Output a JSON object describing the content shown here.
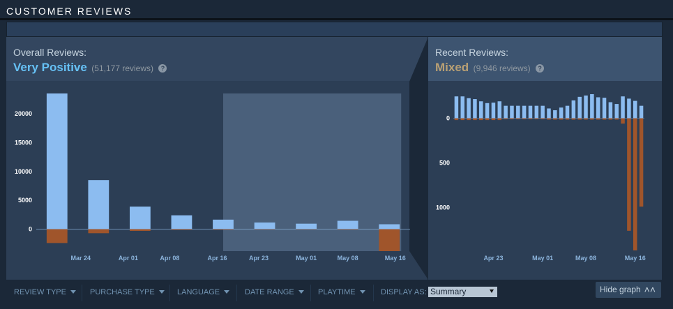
{
  "section_title": "CUSTOMER REVIEWS",
  "overall": {
    "label": "Overall Reviews:",
    "summary": "Very Positive",
    "count": "(51,177 reviews)",
    "help_icon": "?"
  },
  "recent": {
    "label": "Recent Reviews:",
    "summary": "Mixed",
    "count": "(9,946 reviews)",
    "help_icon": "?"
  },
  "colors": {
    "positive": "#8cbcf0",
    "negative": "#a0552b",
    "very_positive": "#66c0f4",
    "mixed": "#b9a074",
    "highlight_range": "#4e6480"
  },
  "filters": [
    {
      "label": "REVIEW TYPE",
      "icon": "caret-down-icon"
    },
    {
      "label": "PURCHASE TYPE",
      "icon": "caret-down-icon"
    },
    {
      "label": "LANGUAGE",
      "icon": "caret-down-icon"
    },
    {
      "label": "DATE RANGE",
      "icon": "caret-down-icon"
    },
    {
      "label": "PLAYTIME",
      "icon": "caret-down-icon"
    }
  ],
  "display_as": {
    "label": "DISPLAY AS:",
    "value": "Summary"
  },
  "hide_graph": {
    "label": "Hide graph",
    "icon": "double-chevron-up-icon"
  },
  "chart_data": [
    {
      "type": "bar",
      "name": "overall",
      "bar_dates": [
        "2023-03-20",
        "2023-03-27",
        "2023-04-03",
        "2023-04-10",
        "2023-04-17",
        "2023-04-24",
        "2023-05-01",
        "2023-05-08",
        "2023-05-15"
      ],
      "x_ticks": [
        {
          "label": "Mar 24",
          "date": "2023-03-24"
        },
        {
          "label": "Apr 01",
          "date": "2023-04-01"
        },
        {
          "label": "Apr 08",
          "date": "2023-04-08"
        },
        {
          "label": "Apr 16",
          "date": "2023-04-16"
        },
        {
          "label": "Apr 23",
          "date": "2023-04-23"
        },
        {
          "label": "May 01",
          "date": "2023-05-01"
        },
        {
          "label": "May 08",
          "date": "2023-05-08"
        },
        {
          "label": "May 16",
          "date": "2023-05-16"
        }
      ],
      "positive": [
        23500,
        8500,
        3900,
        2400,
        1650,
        1150,
        950,
        1450,
        850
      ],
      "negative": [
        2400,
        700,
        300,
        120,
        90,
        60,
        50,
        80,
        3800
      ],
      "y_ticks": [
        0,
        5000,
        10000,
        15000,
        20000
      ],
      "ylim": [
        -3800,
        23500
      ],
      "highlight_range": [
        "2023-04-17",
        "2023-05-17"
      ]
    },
    {
      "type": "bar",
      "name": "recent",
      "bar_dates": [
        "2023-04-17",
        "2023-04-18",
        "2023-04-19",
        "2023-04-20",
        "2023-04-21",
        "2023-04-22",
        "2023-04-23",
        "2023-04-24",
        "2023-04-25",
        "2023-04-26",
        "2023-04-27",
        "2023-04-28",
        "2023-04-29",
        "2023-04-30",
        "2023-05-01",
        "2023-05-02",
        "2023-05-03",
        "2023-05-04",
        "2023-05-05",
        "2023-05-06",
        "2023-05-07",
        "2023-05-08",
        "2023-05-09",
        "2023-05-10",
        "2023-05-11",
        "2023-05-12",
        "2023-05-13",
        "2023-05-14",
        "2023-05-15",
        "2023-05-16",
        "2023-05-17"
      ],
      "x_ticks": [
        {
          "label": "Apr 23",
          "date": "2023-04-23"
        },
        {
          "label": "May 01",
          "date": "2023-05-01"
        },
        {
          "label": "May 08",
          "date": "2023-05-08"
        },
        {
          "label": "May 16",
          "date": "2023-05-16"
        }
      ],
      "positive": [
        245,
        245,
        225,
        215,
        190,
        170,
        175,
        190,
        140,
        140,
        140,
        140,
        140,
        140,
        140,
        110,
        90,
        120,
        140,
        200,
        240,
        255,
        270,
        235,
        230,
        180,
        160,
        245,
        220,
        195,
        140
      ],
      "negative": [
        20,
        20,
        20,
        20,
        20,
        20,
        20,
        20,
        10,
        10,
        10,
        10,
        10,
        10,
        10,
        15,
        15,
        15,
        15,
        15,
        15,
        15,
        15,
        15,
        15,
        15,
        15,
        60,
        1260,
        1480,
        990
      ],
      "y_ticks": [
        0,
        500,
        1000
      ],
      "ylim": [
        -1480,
        270
      ]
    }
  ]
}
